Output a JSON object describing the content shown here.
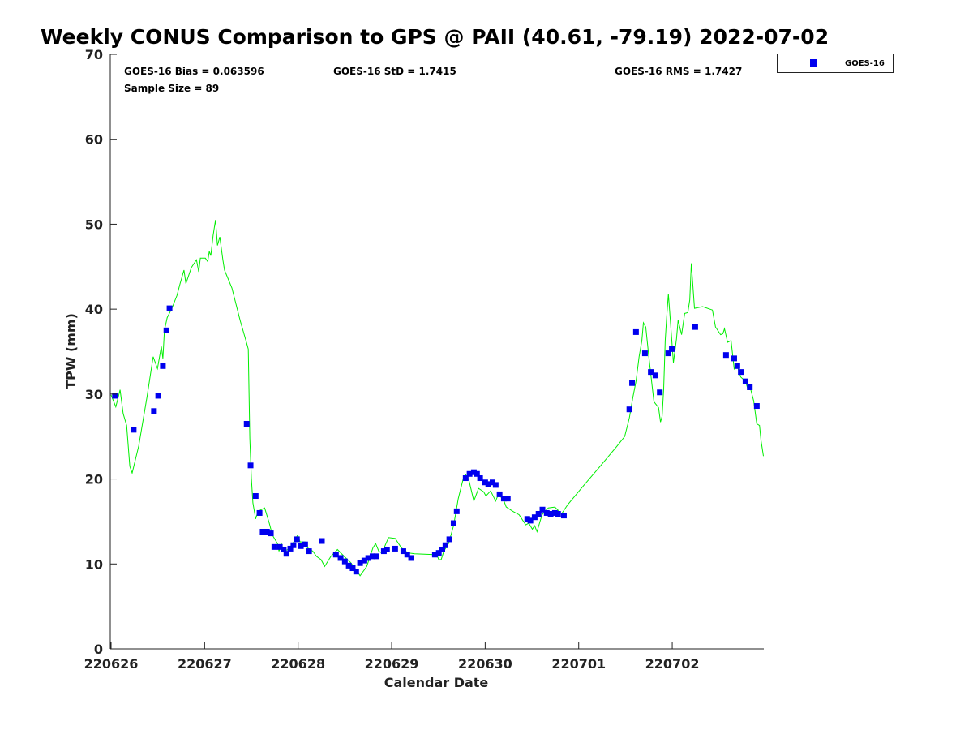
{
  "chart_data": {
    "type": "line",
    "title": "Weekly CONUS Comparison to GPS @ PAII (40.61, -79.19) 2022-07-02",
    "xlabel": "Calendar Date",
    "ylabel": "TPW (mm)",
    "x_units": "hours since 220626",
    "xlim": [
      0,
      167.5
    ],
    "ylim": [
      0,
      70
    ],
    "x_ticks": [
      0,
      24,
      48,
      72,
      96,
      120,
      144
    ],
    "x_tick_labels": [
      "220626",
      "220627",
      "220628",
      "220629",
      "220630",
      "220701",
      "220702"
    ],
    "y_ticks": [
      0,
      10,
      20,
      30,
      40,
      50,
      60,
      70
    ],
    "y_tick_labels": [
      "0",
      "10",
      "20",
      "30",
      "40",
      "50",
      "60",
      "70"
    ],
    "grid": false,
    "legend": {
      "placement": "top-right",
      "entries": [
        "GOES-16"
      ]
    },
    "stats": {
      "bias": "GOES-16 Bias = 0.063596",
      "std": "GOES-16 StD = 1.7415",
      "rms": "GOES-16 RMS = 1.7427",
      "sample": "Sample Size = 89"
    },
    "colors": {
      "gps_line": "#00ee00",
      "goes16": "#0000ee"
    },
    "series": [
      {
        "name": "GPS",
        "style": "line",
        "points": [
          [
            0,
            29.9
          ],
          [
            1.2,
            28.5
          ],
          [
            2.3,
            30.5
          ],
          [
            3.1,
            27.7
          ],
          [
            4.0,
            26.3
          ],
          [
            4.8,
            21.5
          ],
          [
            5.4,
            20.7
          ],
          [
            7.1,
            23.9
          ],
          [
            9.2,
            29.6
          ],
          [
            10.8,
            34.4
          ],
          [
            11.9,
            33.0
          ],
          [
            12.9,
            35.6
          ],
          [
            13.3,
            34.2
          ],
          [
            13.7,
            37.5
          ],
          [
            14.4,
            39.0
          ],
          [
            15.6,
            40.1
          ],
          [
            16.9,
            41.6
          ],
          [
            17.7,
            43.0
          ],
          [
            18.7,
            44.6
          ],
          [
            19.2,
            43.0
          ],
          [
            20.6,
            44.9
          ],
          [
            21.9,
            45.8
          ],
          [
            22.5,
            44.4
          ],
          [
            22.9,
            46.0
          ],
          [
            24.2,
            46.0
          ],
          [
            24.8,
            45.6
          ],
          [
            25.2,
            46.8
          ],
          [
            25.6,
            46.3
          ],
          [
            26.2,
            48.7
          ],
          [
            26.8,
            50.5
          ],
          [
            27.3,
            47.5
          ],
          [
            27.9,
            48.5
          ],
          [
            28.7,
            45.8
          ],
          [
            29.1,
            44.6
          ],
          [
            31.0,
            42.5
          ],
          [
            33.1,
            38.7
          ],
          [
            34.8,
            36.0
          ],
          [
            35.2,
            35.3
          ],
          [
            35.6,
            24.8
          ],
          [
            36.0,
            20.1
          ],
          [
            36.4,
            17.2
          ],
          [
            37.1,
            15.3
          ],
          [
            37.7,
            16.2
          ],
          [
            39.4,
            16.6
          ],
          [
            40.6,
            14.8
          ],
          [
            41.4,
            13.4
          ],
          [
            42.7,
            12.4
          ],
          [
            43.1,
            11.5
          ],
          [
            43.7,
            12.4
          ],
          [
            44.3,
            11.5
          ],
          [
            45.4,
            11.7
          ],
          [
            46.6,
            12.4
          ],
          [
            47.9,
            13.4
          ],
          [
            48.5,
            12.6
          ],
          [
            49.8,
            12.6
          ],
          [
            50.4,
            11.9
          ],
          [
            51.8,
            11.5
          ],
          [
            52.7,
            10.9
          ],
          [
            53.9,
            10.5
          ],
          [
            54.8,
            9.7
          ],
          [
            56.4,
            10.9
          ],
          [
            58.1,
            11.7
          ],
          [
            59.8,
            10.9
          ],
          [
            61.4,
            10.2
          ],
          [
            63.1,
            9.2
          ],
          [
            63.9,
            8.6
          ],
          [
            65.6,
            9.7
          ],
          [
            67.2,
            11.9
          ],
          [
            67.9,
            12.4
          ],
          [
            68.7,
            11.5
          ],
          [
            69.5,
            11.3
          ],
          [
            71.2,
            13.1
          ],
          [
            72.9,
            13.0
          ],
          [
            74.5,
            11.9
          ],
          [
            76.2,
            11.3
          ],
          [
            77.9,
            11.2
          ],
          [
            82.9,
            11.1
          ],
          [
            83.5,
            11.2
          ],
          [
            84.1,
            10.5
          ],
          [
            84.7,
            10.5
          ],
          [
            85.4,
            11.5
          ],
          [
            86.6,
            12.4
          ],
          [
            87.9,
            14.5
          ],
          [
            89.1,
            17.7
          ],
          [
            90.4,
            20.1
          ],
          [
            91.0,
            20.5
          ],
          [
            91.8,
            19.9
          ],
          [
            93.1,
            17.4
          ],
          [
            94.3,
            18.9
          ],
          [
            95.6,
            18.5
          ],
          [
            96.2,
            18.0
          ],
          [
            97.4,
            18.6
          ],
          [
            98.7,
            17.4
          ],
          [
            99.3,
            18.1
          ],
          [
            100.6,
            17.7
          ],
          [
            101.4,
            16.7
          ],
          [
            103.1,
            16.2
          ],
          [
            104.7,
            15.8
          ],
          [
            106.4,
            14.6
          ],
          [
            107.2,
            14.8
          ],
          [
            108.1,
            14.1
          ],
          [
            108.7,
            14.5
          ],
          [
            109.3,
            13.8
          ],
          [
            110.6,
            15.8
          ],
          [
            112.2,
            16.6
          ],
          [
            113.9,
            16.7
          ],
          [
            115.6,
            15.9
          ],
          [
            117.2,
            17.0
          ],
          [
            121.4,
            19.3
          ],
          [
            125.5,
            21.5
          ],
          [
            129.7,
            23.8
          ],
          [
            131.8,
            25.0
          ],
          [
            133.0,
            27.2
          ],
          [
            133.9,
            29.6
          ],
          [
            134.7,
            31.5
          ],
          [
            135.5,
            34.4
          ],
          [
            136.2,
            36.3
          ],
          [
            136.6,
            38.4
          ],
          [
            137.2,
            37.9
          ],
          [
            138.0,
            34.4
          ],
          [
            138.7,
            31.5
          ],
          [
            139.3,
            29.1
          ],
          [
            140.5,
            28.4
          ],
          [
            141.0,
            26.7
          ],
          [
            141.4,
            27.4
          ],
          [
            141.8,
            30.6
          ],
          [
            142.2,
            36.3
          ],
          [
            142.6,
            39.2
          ],
          [
            143.0,
            41.8
          ],
          [
            143.5,
            38.7
          ],
          [
            144.3,
            33.7
          ],
          [
            145.1,
            36.5
          ],
          [
            145.5,
            38.7
          ],
          [
            146.4,
            37.0
          ],
          [
            147.2,
            39.5
          ],
          [
            148.0,
            39.6
          ],
          [
            148.5,
            41.1
          ],
          [
            148.9,
            45.4
          ],
          [
            149.7,
            40.1
          ],
          [
            151.8,
            40.3
          ],
          [
            154.3,
            39.9
          ],
          [
            155.1,
            37.9
          ],
          [
            156.4,
            37.0
          ],
          [
            157.0,
            37.1
          ],
          [
            157.4,
            37.7
          ],
          [
            158.2,
            36.1
          ],
          [
            159.1,
            36.3
          ],
          [
            159.9,
            32.9
          ],
          [
            160.5,
            33.6
          ],
          [
            161.6,
            32.0
          ],
          [
            162.8,
            31.5
          ],
          [
            163.4,
            30.6
          ],
          [
            164.1,
            30.6
          ],
          [
            164.9,
            29.2
          ],
          [
            165.7,
            26.5
          ],
          [
            166.4,
            26.3
          ],
          [
            166.8,
            24.5
          ],
          [
            167.4,
            22.7
          ]
        ]
      },
      {
        "name": "GOES-16",
        "style": "square",
        "points": [
          [
            1.0,
            29.8
          ],
          [
            5.8,
            25.8
          ],
          [
            11.0,
            28.0
          ],
          [
            12.1,
            29.8
          ],
          [
            13.3,
            33.3
          ],
          [
            14.2,
            37.5
          ],
          [
            15.0,
            40.1
          ],
          [
            34.8,
            26.5
          ],
          [
            35.8,
            21.6
          ],
          [
            37.1,
            18.0
          ],
          [
            38.1,
            16.0
          ],
          [
            38.9,
            13.8
          ],
          [
            40.0,
            13.8
          ],
          [
            41.0,
            13.6
          ],
          [
            41.9,
            12.0
          ],
          [
            43.3,
            12.0
          ],
          [
            44.3,
            11.7
          ],
          [
            45.0,
            11.2
          ],
          [
            46.0,
            11.8
          ],
          [
            46.8,
            12.2
          ],
          [
            47.7,
            12.9
          ],
          [
            48.7,
            12.1
          ],
          [
            49.8,
            12.3
          ],
          [
            50.8,
            11.5
          ],
          [
            54.1,
            12.7
          ],
          [
            57.7,
            11.1
          ],
          [
            58.9,
            10.7
          ],
          [
            60.0,
            10.3
          ],
          [
            61.0,
            9.8
          ],
          [
            62.0,
            9.5
          ],
          [
            62.9,
            9.1
          ],
          [
            63.9,
            10.1
          ],
          [
            65.0,
            10.4
          ],
          [
            66.0,
            10.7
          ],
          [
            67.1,
            10.9
          ],
          [
            68.1,
            10.9
          ],
          [
            70.0,
            11.5
          ],
          [
            70.8,
            11.7
          ],
          [
            72.9,
            11.8
          ],
          [
            75.0,
            11.5
          ],
          [
            76.0,
            11.1
          ],
          [
            77.0,
            10.7
          ],
          [
            83.1,
            11.1
          ],
          [
            84.1,
            11.3
          ],
          [
            85.0,
            11.7
          ],
          [
            85.8,
            12.2
          ],
          [
            86.8,
            12.9
          ],
          [
            87.9,
            14.8
          ],
          [
            88.7,
            16.2
          ],
          [
            91.0,
            20.1
          ],
          [
            92.0,
            20.6
          ],
          [
            93.1,
            20.8
          ],
          [
            93.9,
            20.6
          ],
          [
            94.7,
            20.1
          ],
          [
            96.0,
            19.6
          ],
          [
            96.8,
            19.4
          ],
          [
            97.9,
            19.6
          ],
          [
            98.7,
            19.3
          ],
          [
            99.7,
            18.2
          ],
          [
            100.8,
            17.7
          ],
          [
            101.8,
            17.7
          ],
          [
            106.8,
            15.3
          ],
          [
            107.6,
            15.1
          ],
          [
            108.7,
            15.5
          ],
          [
            109.7,
            15.9
          ],
          [
            110.7,
            16.4
          ],
          [
            111.8,
            16.0
          ],
          [
            112.8,
            15.9
          ],
          [
            113.9,
            16.0
          ],
          [
            114.7,
            15.9
          ],
          [
            116.2,
            15.7
          ],
          [
            133.0,
            28.2
          ],
          [
            133.7,
            31.3
          ],
          [
            134.7,
            37.3
          ],
          [
            137.0,
            34.8
          ],
          [
            138.5,
            32.6
          ],
          [
            139.7,
            32.2
          ],
          [
            140.8,
            30.2
          ],
          [
            143.0,
            34.8
          ],
          [
            143.9,
            35.3
          ],
          [
            149.9,
            37.9
          ],
          [
            157.8,
            34.6
          ],
          [
            159.9,
            34.2
          ],
          [
            160.7,
            33.3
          ],
          [
            161.6,
            32.6
          ],
          [
            162.8,
            31.5
          ],
          [
            163.9,
            30.8
          ],
          [
            165.7,
            28.6
          ]
        ]
      }
    ]
  }
}
